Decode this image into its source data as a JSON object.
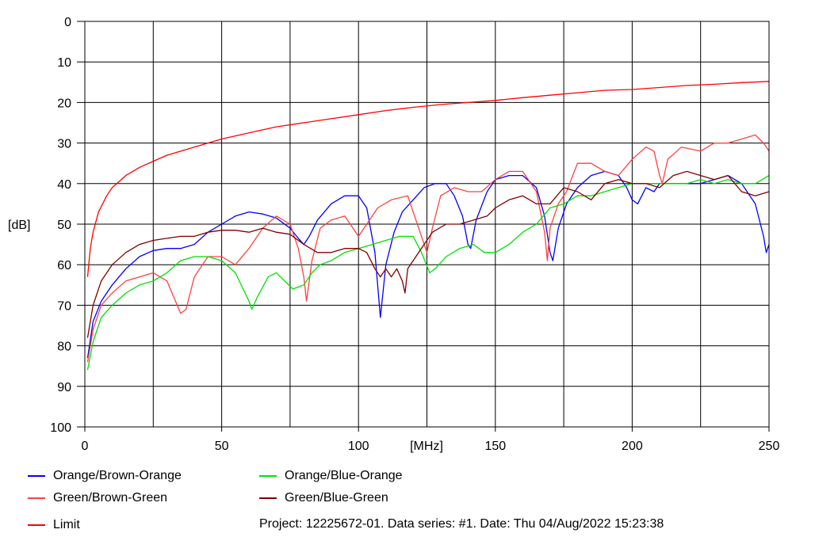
{
  "chart_data": {
    "type": "line",
    "xlabel": "[MHz]",
    "ylabel": "[dB]",
    "xlim": [
      0,
      250
    ],
    "ylim": [
      0,
      100
    ],
    "y_inverted": true,
    "x_ticks": [
      0,
      50,
      100,
      150,
      200,
      250
    ],
    "x_tick_labels": [
      "0",
      "50",
      "100",
      "150",
      "200",
      "250"
    ],
    "x_grid": [
      0,
      25,
      50,
      75,
      100,
      125,
      150,
      175,
      200,
      225,
      250
    ],
    "y_ticks": [
      0,
      10,
      20,
      30,
      40,
      50,
      60,
      70,
      80,
      90,
      100
    ],
    "grid": true,
    "legend_position": "bottom",
    "series": [
      {
        "name": "Orange/Brown-Orange",
        "color": "#0000ff",
        "points": [
          [
            1,
            83
          ],
          [
            3,
            74
          ],
          [
            6,
            69
          ],
          [
            10,
            65
          ],
          [
            15,
            61
          ],
          [
            20,
            58
          ],
          [
            25,
            56.5
          ],
          [
            30,
            56
          ],
          [
            35,
            56
          ],
          [
            40,
            55
          ],
          [
            45,
            52
          ],
          [
            50,
            50
          ],
          [
            55,
            48
          ],
          [
            60,
            47
          ],
          [
            65,
            47.5
          ],
          [
            70,
            48.5
          ],
          [
            75,
            51
          ],
          [
            78,
            53.5
          ],
          [
            80,
            55
          ],
          [
            82,
            53
          ],
          [
            85,
            49
          ],
          [
            90,
            45
          ],
          [
            95,
            43
          ],
          [
            100,
            43
          ],
          [
            103,
            46
          ],
          [
            106,
            57
          ],
          [
            108,
            73
          ],
          [
            110,
            60
          ],
          [
            113,
            52
          ],
          [
            116,
            47
          ],
          [
            120,
            44
          ],
          [
            124,
            41
          ],
          [
            128,
            40
          ],
          [
            132,
            40
          ],
          [
            135,
            43
          ],
          [
            138,
            48
          ],
          [
            140,
            55
          ],
          [
            141,
            56
          ],
          [
            143,
            49
          ],
          [
            147,
            42
          ],
          [
            150,
            39
          ],
          [
            155,
            38
          ],
          [
            160,
            38
          ],
          [
            165,
            41
          ],
          [
            168,
            48
          ],
          [
            170,
            57
          ],
          [
            171,
            59
          ],
          [
            173,
            51
          ],
          [
            176,
            45
          ],
          [
            180,
            41
          ],
          [
            185,
            38
          ],
          [
            190,
            37
          ],
          [
            195,
            38
          ],
          [
            198,
            41
          ],
          [
            200,
            44
          ],
          [
            202,
            45
          ],
          [
            205,
            41
          ],
          [
            208,
            42
          ],
          [
            210,
            40
          ],
          [
            215,
            40
          ],
          [
            220,
            40
          ],
          [
            225,
            40
          ],
          [
            230,
            39
          ],
          [
            235,
            38
          ],
          [
            240,
            40
          ],
          [
            245,
            45
          ],
          [
            248,
            53
          ],
          [
            249,
            57
          ],
          [
            250,
            55
          ]
        ]
      },
      {
        "name": "Green/Brown-Green",
        "color": "#ff4040",
        "points": [
          [
            1,
            84
          ],
          [
            3,
            76
          ],
          [
            6,
            70
          ],
          [
            10,
            67
          ],
          [
            15,
            64
          ],
          [
            20,
            63
          ],
          [
            25,
            62
          ],
          [
            30,
            64
          ],
          [
            35,
            72
          ],
          [
            37,
            71
          ],
          [
            40,
            63
          ],
          [
            45,
            58
          ],
          [
            50,
            58
          ],
          [
            55,
            60
          ],
          [
            60,
            56
          ],
          [
            65,
            51
          ],
          [
            70,
            48
          ],
          [
            75,
            50
          ],
          [
            78,
            56
          ],
          [
            80,
            63
          ],
          [
            81,
            69
          ],
          [
            83,
            59
          ],
          [
            86,
            51
          ],
          [
            90,
            49
          ],
          [
            95,
            48
          ],
          [
            99,
            52
          ],
          [
            100,
            53
          ],
          [
            103,
            50
          ],
          [
            107,
            46
          ],
          [
            112,
            44
          ],
          [
            118,
            43
          ],
          [
            122,
            51
          ],
          [
            125,
            57
          ],
          [
            127,
            51
          ],
          [
            130,
            43
          ],
          [
            135,
            41
          ],
          [
            140,
            42
          ],
          [
            145,
            42
          ],
          [
            150,
            39
          ],
          [
            155,
            37
          ],
          [
            160,
            37
          ],
          [
            165,
            42
          ],
          [
            168,
            52
          ],
          [
            169,
            59
          ],
          [
            170,
            51
          ],
          [
            173,
            45
          ],
          [
            176,
            42
          ],
          [
            180,
            35
          ],
          [
            185,
            35
          ],
          [
            190,
            37
          ],
          [
            195,
            38
          ],
          [
            200,
            34
          ],
          [
            205,
            31
          ],
          [
            208,
            32
          ],
          [
            210,
            38
          ],
          [
            211,
            40
          ],
          [
            213,
            34
          ],
          [
            218,
            31
          ],
          [
            225,
            32
          ],
          [
            230,
            30
          ],
          [
            235,
            30
          ],
          [
            240,
            29
          ],
          [
            245,
            28
          ],
          [
            248,
            30
          ],
          [
            250,
            32
          ]
        ]
      },
      {
        "name": "Limit",
        "color": "#ff0000",
        "points": [
          [
            1,
            63
          ],
          [
            2,
            56
          ],
          [
            3,
            52
          ],
          [
            5,
            47
          ],
          [
            8,
            43
          ],
          [
            10,
            41
          ],
          [
            15,
            38
          ],
          [
            20,
            36
          ],
          [
            25,
            34.5
          ],
          [
            30,
            33
          ],
          [
            40,
            31
          ],
          [
            50,
            29
          ],
          [
            60,
            27.5
          ],
          [
            70,
            26
          ],
          [
            80,
            25
          ],
          [
            90,
            24
          ],
          [
            100,
            23
          ],
          [
            110,
            22
          ],
          [
            120,
            21.2
          ],
          [
            130,
            20.5
          ],
          [
            140,
            20
          ],
          [
            150,
            19.5
          ],
          [
            160,
            18.8
          ],
          [
            170,
            18.2
          ],
          [
            180,
            17.6
          ],
          [
            190,
            17
          ],
          [
            200,
            16.8
          ],
          [
            210,
            16.3
          ],
          [
            220,
            15.8
          ],
          [
            230,
            15.5
          ],
          [
            240,
            15.1
          ],
          [
            250,
            14.8
          ]
        ]
      },
      {
        "name": "Orange/Blue-Orange",
        "color": "#00e000",
        "points": [
          [
            1,
            86
          ],
          [
            3,
            79
          ],
          [
            6,
            73
          ],
          [
            10,
            70
          ],
          [
            15,
            67
          ],
          [
            20,
            65
          ],
          [
            25,
            64
          ],
          [
            30,
            62
          ],
          [
            35,
            59
          ],
          [
            40,
            58
          ],
          [
            45,
            58
          ],
          [
            50,
            59
          ],
          [
            55,
            62
          ],
          [
            60,
            69
          ],
          [
            61,
            71
          ],
          [
            63,
            68
          ],
          [
            67,
            63
          ],
          [
            70,
            62
          ],
          [
            73,
            64
          ],
          [
            76,
            66
          ],
          [
            80,
            65
          ],
          [
            83,
            62
          ],
          [
            86,
            60
          ],
          [
            90,
            59
          ],
          [
            95,
            57
          ],
          [
            100,
            56
          ],
          [
            105,
            55
          ],
          [
            110,
            54
          ],
          [
            115,
            53
          ],
          [
            120,
            53
          ],
          [
            123,
            57
          ],
          [
            126,
            62
          ],
          [
            128,
            61
          ],
          [
            132,
            58
          ],
          [
            137,
            56
          ],
          [
            142,
            55
          ],
          [
            146,
            57
          ],
          [
            150,
            57
          ],
          [
            155,
            55
          ],
          [
            160,
            52
          ],
          [
            165,
            50
          ],
          [
            170,
            46
          ],
          [
            175,
            45
          ],
          [
            180,
            43
          ],
          [
            185,
            43
          ],
          [
            190,
            42
          ],
          [
            195,
            41
          ],
          [
            200,
            40
          ],
          [
            205,
            40
          ],
          [
            210,
            40
          ],
          [
            215,
            40
          ],
          [
            220,
            40
          ],
          [
            225,
            39
          ],
          [
            230,
            40
          ],
          [
            235,
            39
          ],
          [
            240,
            40
          ],
          [
            245,
            40
          ],
          [
            250,
            38
          ]
        ]
      },
      {
        "name": "Green/Blue-Green",
        "color": "#800000",
        "points": [
          [
            1,
            78
          ],
          [
            3,
            70
          ],
          [
            6,
            64
          ],
          [
            10,
            60
          ],
          [
            15,
            57
          ],
          [
            20,
            55
          ],
          [
            25,
            54
          ],
          [
            30,
            53.5
          ],
          [
            35,
            53
          ],
          [
            40,
            53
          ],
          [
            45,
            52
          ],
          [
            50,
            51.5
          ],
          [
            55,
            51.5
          ],
          [
            60,
            52
          ],
          [
            65,
            51
          ],
          [
            70,
            52
          ],
          [
            75,
            52.5
          ],
          [
            80,
            55
          ],
          [
            85,
            57
          ],
          [
            90,
            57
          ],
          [
            95,
            56
          ],
          [
            100,
            56
          ],
          [
            103,
            57
          ],
          [
            106,
            61
          ],
          [
            108,
            63
          ],
          [
            110,
            61
          ],
          [
            112,
            63
          ],
          [
            114,
            61
          ],
          [
            116,
            64
          ],
          [
            117,
            67
          ],
          [
            118,
            61
          ],
          [
            122,
            57
          ],
          [
            127,
            52
          ],
          [
            132,
            50
          ],
          [
            137,
            50
          ],
          [
            142,
            49
          ],
          [
            147,
            48
          ],
          [
            150,
            46
          ],
          [
            155,
            44
          ],
          [
            160,
            43
          ],
          [
            165,
            45
          ],
          [
            170,
            45
          ],
          [
            175,
            41
          ],
          [
            180,
            42
          ],
          [
            185,
            44
          ],
          [
            190,
            40
          ],
          [
            195,
            39
          ],
          [
            200,
            40
          ],
          [
            205,
            40
          ],
          [
            210,
            41
          ],
          [
            215,
            38
          ],
          [
            220,
            37
          ],
          [
            225,
            38
          ],
          [
            230,
            39
          ],
          [
            235,
            38
          ],
          [
            240,
            42
          ],
          [
            245,
            43
          ],
          [
            250,
            42
          ]
        ]
      }
    ]
  },
  "legend": [
    {
      "label": "Orange/Brown-Orange",
      "color": "#0000ff"
    },
    {
      "label": "Orange/Blue-Orange",
      "color": "#00e000"
    },
    {
      "label": "Green/Brown-Green",
      "color": "#ff4040"
    },
    {
      "label": "Green/Blue-Green",
      "color": "#800000"
    },
    {
      "label": "Limit",
      "color": "#ff0000"
    }
  ],
  "project_info": "Project: 12225672-01. Data series: #1. Date: Thu 04/Aug/2022 15:23:38"
}
